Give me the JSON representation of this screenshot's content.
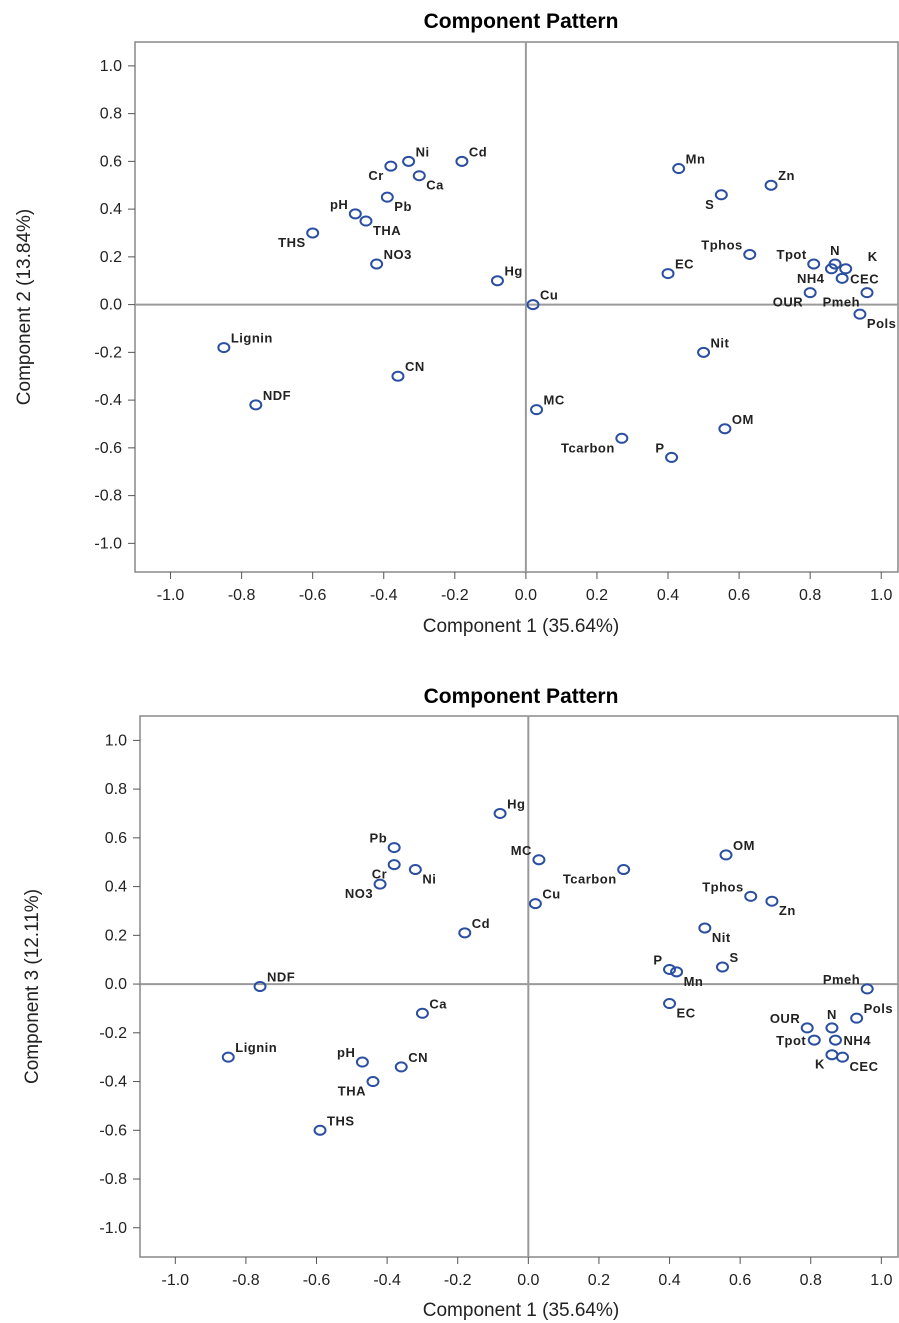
{
  "colors": {
    "marker": "#2b4fa0",
    "frame": "#888888",
    "refline": "#9a9a9a"
  },
  "chart_data": [
    {
      "type": "scatter",
      "title": "Component Pattern",
      "xlabel": "Component 1 (35.64%)",
      "ylabel": "Component 2 (13.84%)",
      "xlim": [
        -1.1,
        1.05
      ],
      "ylim": [
        -1.12,
        1.1
      ],
      "xticks": [
        "-1.0",
        "-0.8",
        "-0.6",
        "-0.4",
        "-0.2",
        "0.0",
        "0.2",
        "0.4",
        "0.6",
        "0.8",
        "1.0"
      ],
      "yticks": [
        "1.0",
        "0.8",
        "0.6",
        "0.4",
        "0.2",
        "0.0",
        "-0.2",
        "-0.4",
        "-0.6",
        "-0.8",
        "-1.0"
      ],
      "reference_lines": {
        "x": 0,
        "y": 0
      },
      "points": [
        {
          "label": "Ni",
          "x": -0.33,
          "y": 0.6,
          "pos": "ne"
        },
        {
          "label": "Cr",
          "x": -0.38,
          "y": 0.58,
          "pos": "sw"
        },
        {
          "label": "Cd",
          "x": -0.18,
          "y": 0.6,
          "pos": "ne"
        },
        {
          "label": "Ca",
          "x": -0.3,
          "y": 0.54,
          "pos": "se"
        },
        {
          "label": "Pb",
          "x": -0.39,
          "y": 0.45,
          "pos": "se"
        },
        {
          "label": "pH",
          "x": -0.48,
          "y": 0.38,
          "pos": "nw"
        },
        {
          "label": "THA",
          "x": -0.45,
          "y": 0.35,
          "pos": "se"
        },
        {
          "label": "THS",
          "x": -0.6,
          "y": 0.3,
          "pos": "sw"
        },
        {
          "label": "NO3",
          "x": -0.42,
          "y": 0.17,
          "pos": "ne"
        },
        {
          "label": "Hg",
          "x": -0.08,
          "y": 0.1,
          "pos": "ne"
        },
        {
          "label": "Cu",
          "x": 0.02,
          "y": 0.0,
          "pos": "ne"
        },
        {
          "label": "Lignin",
          "x": -0.85,
          "y": -0.18,
          "pos": "ne"
        },
        {
          "label": "NDF",
          "x": -0.76,
          "y": -0.42,
          "pos": "ne"
        },
        {
          "label": "CN",
          "x": -0.36,
          "y": -0.3,
          "pos": "ne"
        },
        {
          "label": "MC",
          "x": 0.03,
          "y": -0.44,
          "pos": "ne"
        },
        {
          "label": "Tcarbon",
          "x": 0.27,
          "y": -0.56,
          "pos": "sw"
        },
        {
          "label": "P",
          "x": 0.41,
          "y": -0.64,
          "pos": "nw"
        },
        {
          "label": "OM",
          "x": 0.56,
          "y": -0.52,
          "pos": "ne"
        },
        {
          "label": "Nit",
          "x": 0.5,
          "y": -0.2,
          "pos": "ne"
        },
        {
          "label": "Mn",
          "x": 0.43,
          "y": 0.57,
          "pos": "ne"
        },
        {
          "label": "S",
          "x": 0.55,
          "y": 0.46,
          "pos": "sw"
        },
        {
          "label": "Zn",
          "x": 0.69,
          "y": 0.5,
          "pos": "ne"
        },
        {
          "label": "Tphos",
          "x": 0.63,
          "y": 0.21,
          "pos": "nw"
        },
        {
          "label": "Tpot",
          "x": 0.81,
          "y": 0.17,
          "pos": "nw"
        },
        {
          "label": "N",
          "x": 0.87,
          "y": 0.17,
          "pos": "n"
        },
        {
          "label": "K",
          "x": 0.9,
          "y": 0.15,
          "pos": "ne2"
        },
        {
          "label": "EC",
          "x": 0.4,
          "y": 0.13,
          "pos": "ne"
        },
        {
          "label": "NH4",
          "x": 0.86,
          "y": 0.15,
          "pos": "sw"
        },
        {
          "label": "CEC",
          "x": 0.89,
          "y": 0.11,
          "pos": "e"
        },
        {
          "label": "OUR",
          "x": 0.8,
          "y": 0.05,
          "pos": "sw"
        },
        {
          "label": "Pmeh",
          "x": 0.96,
          "y": 0.05,
          "pos": "sw"
        },
        {
          "label": "Pols",
          "x": 0.94,
          "y": -0.04,
          "pos": "se"
        }
      ]
    },
    {
      "type": "scatter",
      "title": "Component Pattern",
      "xlabel": "Component 1 (35.64%)",
      "ylabel": "Component 3 (12.11%)",
      "xlim": [
        -1.1,
        1.05
      ],
      "ylim": [
        -1.12,
        1.1
      ],
      "xticks": [
        "-1.0",
        "-0.8",
        "-0.6",
        "-0.4",
        "-0.2",
        "0.0",
        "0.2",
        "0.4",
        "0.6",
        "0.8",
        "1.0"
      ],
      "yticks": [
        "1.0",
        "0.8",
        "0.6",
        "0.4",
        "0.2",
        "0.0",
        "-0.2",
        "-0.4",
        "-0.6",
        "-0.8",
        "-1.0"
      ],
      "reference_lines": {
        "x": 0,
        "y": 0
      },
      "points": [
        {
          "label": "Hg",
          "x": -0.08,
          "y": 0.7,
          "pos": "ne"
        },
        {
          "label": "Pb",
          "x": -0.38,
          "y": 0.56,
          "pos": "nw"
        },
        {
          "label": "MC",
          "x": 0.03,
          "y": 0.51,
          "pos": "nw"
        },
        {
          "label": "Cr",
          "x": -0.38,
          "y": 0.49,
          "pos": "sw"
        },
        {
          "label": "Ni",
          "x": -0.32,
          "y": 0.47,
          "pos": "se"
        },
        {
          "label": "NO3",
          "x": -0.42,
          "y": 0.41,
          "pos": "sw"
        },
        {
          "label": "Tcarbon",
          "x": 0.27,
          "y": 0.47,
          "pos": "sw"
        },
        {
          "label": "OM",
          "x": 0.56,
          "y": 0.53,
          "pos": "ne"
        },
        {
          "label": "Cu",
          "x": 0.02,
          "y": 0.33,
          "pos": "ne"
        },
        {
          "label": "Tphos",
          "x": 0.63,
          "y": 0.36,
          "pos": "nw"
        },
        {
          "label": "Zn",
          "x": 0.69,
          "y": 0.34,
          "pos": "se"
        },
        {
          "label": "Cd",
          "x": -0.18,
          "y": 0.21,
          "pos": "ne"
        },
        {
          "label": "Nit",
          "x": 0.5,
          "y": 0.23,
          "pos": "se"
        },
        {
          "label": "P",
          "x": 0.4,
          "y": 0.06,
          "pos": "nw"
        },
        {
          "label": "S",
          "x": 0.55,
          "y": 0.07,
          "pos": "ne"
        },
        {
          "label": "Mn",
          "x": 0.42,
          "y": 0.05,
          "pos": "se"
        },
        {
          "label": "NDF",
          "x": -0.76,
          "y": -0.01,
          "pos": "ne"
        },
        {
          "label": "Ca",
          "x": -0.3,
          "y": -0.12,
          "pos": "ne"
        },
        {
          "label": "EC",
          "x": 0.4,
          "y": -0.08,
          "pos": "se"
        },
        {
          "label": "Pmeh",
          "x": 0.96,
          "y": -0.02,
          "pos": "nw"
        },
        {
          "label": "Pols",
          "x": 0.93,
          "y": -0.14,
          "pos": "ne"
        },
        {
          "label": "OUR",
          "x": 0.79,
          "y": -0.18,
          "pos": "nw"
        },
        {
          "label": "N",
          "x": 0.86,
          "y": -0.18,
          "pos": "n"
        },
        {
          "label": "Tpot",
          "x": 0.81,
          "y": -0.23,
          "pos": "w"
        },
        {
          "label": "NH4",
          "x": 0.87,
          "y": -0.23,
          "pos": "e"
        },
        {
          "label": "K",
          "x": 0.86,
          "y": -0.29,
          "pos": "sw"
        },
        {
          "label": "CEC",
          "x": 0.89,
          "y": -0.3,
          "pos": "se"
        },
        {
          "label": "Lignin",
          "x": -0.85,
          "y": -0.3,
          "pos": "ne"
        },
        {
          "label": "pH",
          "x": -0.47,
          "y": -0.32,
          "pos": "nw"
        },
        {
          "label": "CN",
          "x": -0.36,
          "y": -0.34,
          "pos": "ne"
        },
        {
          "label": "THA",
          "x": -0.44,
          "y": -0.4,
          "pos": "sw"
        },
        {
          "label": "THS",
          "x": -0.59,
          "y": -0.6,
          "pos": "ne"
        }
      ]
    }
  ]
}
